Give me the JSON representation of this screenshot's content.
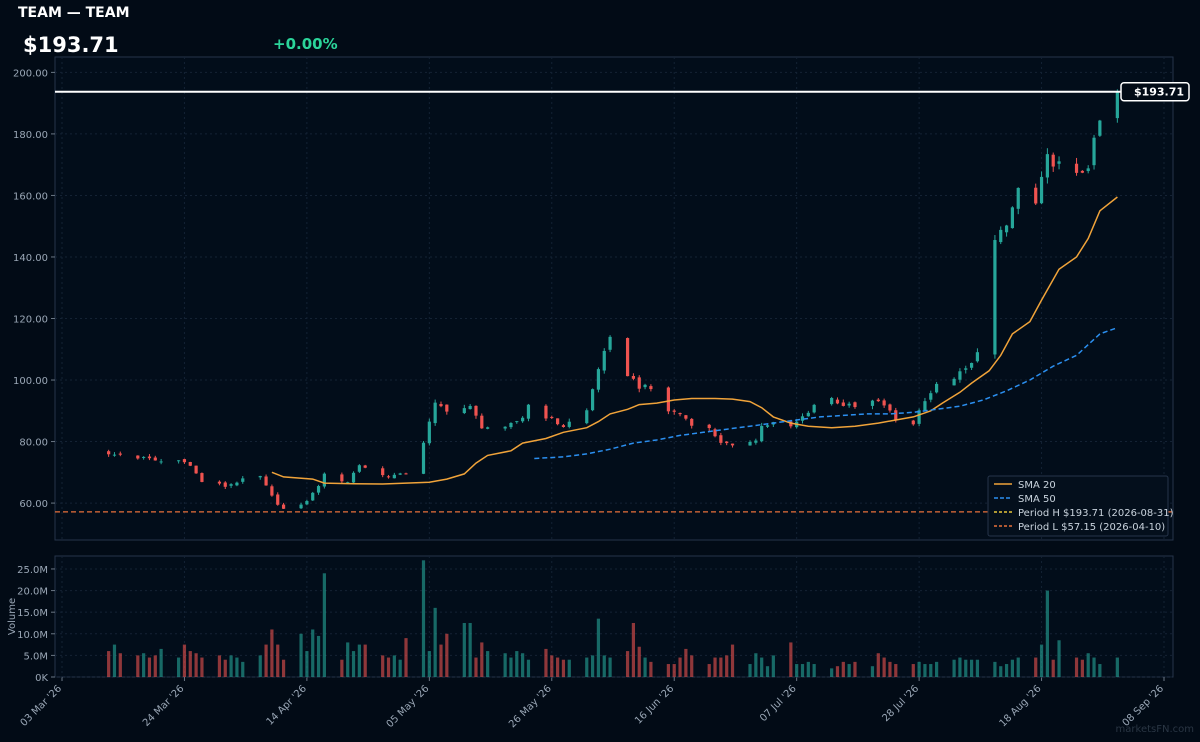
{
  "header": {
    "title": "TEAM — TEAM",
    "price": "$193.71",
    "change": "+0.00%"
  },
  "colors": {
    "background": "#020b16",
    "up": "#26a69a",
    "down": "#ef5350",
    "sma20": "#f0a33a",
    "sma50": "#2b8ff0",
    "period_high": "#e8c53a",
    "period_low": "#e8703a",
    "price_line": "#ffffff"
  },
  "watermark": "marketsFN.com",
  "chart_data": [
    {
      "type": "candlestick",
      "title": "",
      "price_axis": {
        "ylim": [
          48,
          205
        ],
        "ticks": [
          60,
          80,
          100,
          120,
          140,
          160,
          180,
          200
        ],
        "tick_labels": [
          "60.00",
          "80.00",
          "100.00",
          "120.00",
          "140.00",
          "160.00",
          "180.00",
          "200.00"
        ]
      },
      "x_axis": {
        "start": "2026-03-03",
        "end": "2026-09-08",
        "ticks": [
          "2026-03-03",
          "2026-03-24",
          "2026-04-14",
          "2026-05-05",
          "2026-05-26",
          "2026-06-16",
          "2026-07-07",
          "2026-07-28",
          "2026-08-18",
          "2026-09-08"
        ],
        "tick_labels": [
          "03 Mar '26",
          "24 Mar '26",
          "14 Apr '26",
          "05 May '26",
          "26 May '26",
          "16 Jun '26",
          "07 Jul '26",
          "28 Jul '26",
          "18 Aug '26",
          "08 Sep '26"
        ]
      },
      "current_price_label": "$193.71",
      "current_price": 193.71,
      "legend": {
        "placement": "bottom-right",
        "entries": [
          "SMA 20",
          "SMA 50",
          "Period H $193.71 (2026-08-31)",
          "Period L $57.15 (2026-04-10)"
        ]
      },
      "period_high": 193.71,
      "period_low": 57.15,
      "anchors": [
        [
          "2026-03-11",
          75.5
        ],
        [
          "2026-03-13",
          75.8
        ],
        [
          "2026-03-18",
          74.2
        ],
        [
          "2026-03-20",
          73.5
        ],
        [
          "2026-03-24",
          74.0
        ],
        [
          "2026-03-25",
          72.0
        ],
        [
          "2026-03-27",
          67.0
        ],
        [
          "2026-03-31",
          65.5
        ],
        [
          "2026-04-02",
          67.0
        ],
        [
          "2026-04-06",
          68.5
        ],
        [
          "2026-04-08",
          62.0
        ],
        [
          "2026-04-10",
          58.0
        ],
        [
          "2026-04-13",
          59.0
        ],
        [
          "2026-04-15",
          63.0
        ],
        [
          "2026-04-17",
          69.0
        ],
        [
          "2026-04-21",
          67.0
        ],
        [
          "2026-04-23",
          72.5
        ],
        [
          "2026-04-27",
          69.0
        ],
        [
          "2026-04-30",
          69.0
        ],
        [
          "2026-05-01",
          70.0
        ],
        [
          "2026-05-04",
          80.0
        ],
        [
          "2026-05-06",
          92.0
        ],
        [
          "2026-05-08",
          90.5
        ],
        [
          "2026-05-12",
          91.0
        ],
        [
          "2026-05-14",
          85.0
        ],
        [
          "2026-05-18",
          84.0
        ],
        [
          "2026-05-21",
          88.0
        ],
        [
          "2026-05-22",
          92.0
        ],
        [
          "2026-05-26",
          87.0
        ],
        [
          "2026-05-28",
          85.0
        ],
        [
          "2026-06-01",
          90.0
        ],
        [
          "2026-06-03",
          104.0
        ],
        [
          "2026-06-05",
          113.0
        ],
        [
          "2026-06-08",
          102.0
        ],
        [
          "2026-06-10",
          98.0
        ],
        [
          "2026-06-12",
          97.0
        ],
        [
          "2026-06-15",
          90.0
        ],
        [
          "2026-06-17",
          89.0
        ],
        [
          "2026-06-19",
          86.0
        ],
        [
          "2026-06-22",
          84.0
        ],
        [
          "2026-06-24",
          80.0
        ],
        [
          "2026-06-26",
          78.0
        ],
        [
          "2026-06-30",
          81.0
        ],
        [
          "2026-07-01",
          85.0
        ],
        [
          "2026-07-03",
          86.0
        ],
        [
          "2026-07-06",
          84.5
        ],
        [
          "2026-07-08",
          88.0
        ],
        [
          "2026-07-10",
          92.0
        ],
        [
          "2026-07-13",
          94.0
        ],
        [
          "2026-07-15",
          92.0
        ],
        [
          "2026-07-17",
          91.0
        ],
        [
          "2026-07-20",
          93.0
        ],
        [
          "2026-07-22",
          92.0
        ],
        [
          "2026-07-24",
          87.0
        ],
        [
          "2026-07-27",
          86.0
        ],
        [
          "2026-07-29",
          94.0
        ],
        [
          "2026-07-31",
          98.0
        ],
        [
          "2026-08-04",
          102.0
        ],
        [
          "2026-08-06",
          105.0
        ],
        [
          "2026-08-07",
          110.0
        ],
        [
          "2026-08-10",
          145.0
        ],
        [
          "2026-08-12",
          150.0
        ],
        [
          "2026-08-14",
          162.0
        ],
        [
          "2026-08-17",
          157.0
        ],
        [
          "2026-08-19",
          172.0
        ],
        [
          "2026-08-21",
          170.0
        ],
        [
          "2026-08-24",
          166.0
        ],
        [
          "2026-08-26",
          170.0
        ],
        [
          "2026-08-28",
          184.0
        ],
        [
          "2026-08-31",
          193.71
        ]
      ],
      "volume_pattern": [
        6,
        7.5,
        5.5,
        5,
        5.5,
        4.5,
        5,
        6.5,
        4.5,
        7.5,
        6,
        5.5,
        4.5,
        5,
        4,
        5,
        4.5,
        3.5,
        5,
        7.5,
        11,
        7.5,
        4,
        10,
        6,
        11,
        9.5,
        24,
        4,
        8,
        6,
        7.5,
        7.5,
        5,
        4.5,
        5,
        4,
        9,
        27,
        6,
        16,
        7.5,
        10,
        12.5,
        12.5,
        4.5,
        8,
        6,
        5.5,
        4.5,
        6,
        5.5,
        4,
        6.5,
        5,
        4.5,
        4,
        4,
        4.5,
        5,
        13.5,
        5,
        4.5,
        6,
        12.5,
        7,
        4.5,
        3.5,
        3,
        3,
        4.5,
        6.5,
        5,
        3,
        4.5,
        4.5,
        5,
        7.5,
        3,
        5.5,
        4.5,
        2.5,
        5,
        8,
        3,
        3,
        3.5,
        3,
        2,
        2.5,
        3.5,
        3,
        3.5,
        2.5,
        5.5,
        4.5,
        3.5,
        3,
        3,
        3.5,
        3,
        3,
        3.5,
        4,
        4.5,
        4,
        4,
        4,
        3.5,
        2.5,
        3,
        4,
        4.5,
        4.5,
        7.5,
        20,
        4,
        8.5,
        4.5,
        4,
        5.5,
        4.5,
        3,
        4.5,
        6,
        5.5,
        3.5,
        2.5,
        3,
        3.5,
        4.5,
        6,
        5.5,
        1
      ],
      "sma20": [
        [
          "2026-04-08",
          70.0
        ],
        [
          "2026-04-10",
          68.5
        ],
        [
          "2026-04-15",
          67.8
        ],
        [
          "2026-04-17",
          66.5
        ],
        [
          "2026-04-22",
          66.3
        ],
        [
          "2026-04-27",
          66.2
        ],
        [
          "2026-05-01",
          66.5
        ],
        [
          "2026-05-05",
          66.8
        ],
        [
          "2026-05-08",
          67.8
        ],
        [
          "2026-05-11",
          69.5
        ],
        [
          "2026-05-13",
          73.0
        ],
        [
          "2026-05-15",
          75.5
        ],
        [
          "2026-05-19",
          77.0
        ],
        [
          "2026-05-21",
          79.5
        ],
        [
          "2026-05-25",
          81.0
        ],
        [
          "2026-05-28",
          83.0
        ],
        [
          "2026-06-01",
          84.5
        ],
        [
          "2026-06-03",
          86.5
        ],
        [
          "2026-06-05",
          89.0
        ],
        [
          "2026-06-08",
          90.5
        ],
        [
          "2026-06-10",
          92.0
        ],
        [
          "2026-06-13",
          92.5
        ],
        [
          "2026-06-16",
          93.5
        ],
        [
          "2026-06-19",
          94.0
        ],
        [
          "2026-06-23",
          94.0
        ],
        [
          "2026-06-26",
          93.8
        ],
        [
          "2026-06-29",
          93.0
        ],
        [
          "2026-07-01",
          91.0
        ],
        [
          "2026-07-03",
          88.0
        ],
        [
          "2026-07-06",
          86.0
        ],
        [
          "2026-07-09",
          85.0
        ],
        [
          "2026-07-13",
          84.5
        ],
        [
          "2026-07-17",
          85.0
        ],
        [
          "2026-07-21",
          86.0
        ],
        [
          "2026-07-24",
          87.0
        ],
        [
          "2026-07-27",
          88.0
        ],
        [
          "2026-07-30",
          90.0
        ],
        [
          "2026-08-01",
          92.5
        ],
        [
          "2026-08-04",
          96.0
        ],
        [
          "2026-08-06",
          99.0
        ],
        [
          "2026-08-09",
          103.0
        ],
        [
          "2026-08-11",
          108.0
        ],
        [
          "2026-08-13",
          115.0
        ],
        [
          "2026-08-16",
          119.0
        ],
        [
          "2026-08-18",
          126.0
        ],
        [
          "2026-08-21",
          136.0
        ],
        [
          "2026-08-24",
          140.0
        ],
        [
          "2026-08-26",
          146.0
        ],
        [
          "2026-08-28",
          155.0
        ],
        [
          "2026-08-31",
          159.5
        ]
      ],
      "sma50": [
        [
          "2026-05-23",
          74.5
        ],
        [
          "2026-05-28",
          75.0
        ],
        [
          "2026-06-01",
          76.0
        ],
        [
          "2026-06-05",
          77.5
        ],
        [
          "2026-06-09",
          79.5
        ],
        [
          "2026-06-13",
          80.5
        ],
        [
          "2026-06-17",
          82.0
        ],
        [
          "2026-06-21",
          83.0
        ],
        [
          "2026-06-25",
          84.0
        ],
        [
          "2026-06-29",
          85.0
        ],
        [
          "2026-07-03",
          86.0
        ],
        [
          "2026-07-07",
          87.0
        ],
        [
          "2026-07-11",
          88.0
        ],
        [
          "2026-07-15",
          88.5
        ],
        [
          "2026-07-19",
          89.0
        ],
        [
          "2026-07-23",
          89.0
        ],
        [
          "2026-07-27",
          89.5
        ],
        [
          "2026-07-31",
          90.5
        ],
        [
          "2026-08-04",
          91.5
        ],
        [
          "2026-08-08",
          93.5
        ],
        [
          "2026-08-12",
          96.5
        ],
        [
          "2026-08-16",
          100.0
        ],
        [
          "2026-08-20",
          104.5
        ],
        [
          "2026-08-24",
          108.0
        ],
        [
          "2026-08-28",
          115.0
        ],
        [
          "2026-08-31",
          117.0
        ]
      ]
    },
    {
      "type": "bar",
      "title": "",
      "ylabel": "Volume",
      "ylim": [
        0,
        28
      ],
      "ticks": [
        0,
        5,
        10,
        15,
        20,
        25
      ],
      "tick_labels": [
        "0K",
        "5.0M",
        "10.0M",
        "15.0M",
        "20.0M",
        "25.0M"
      ]
    }
  ]
}
